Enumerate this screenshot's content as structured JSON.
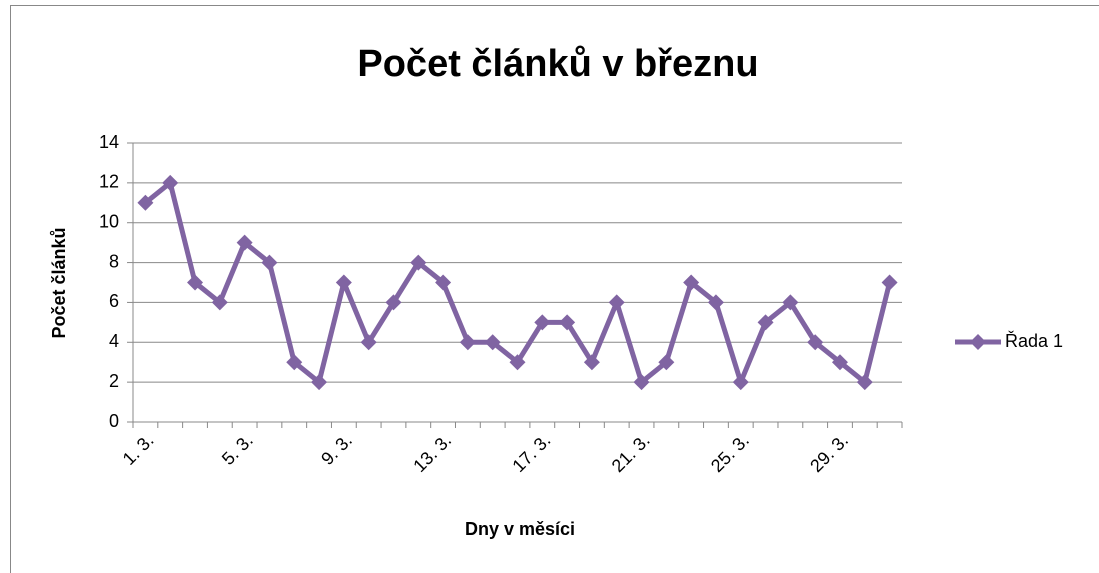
{
  "chart_data": {
    "type": "line",
    "title": "Počet článků v březnu",
    "xlabel": "Dny v měsíci",
    "ylabel": "Počet článků",
    "categories": [
      "1. 3.",
      null,
      null,
      null,
      "5. 3.",
      null,
      null,
      null,
      "9. 3.",
      null,
      null,
      null,
      "13. 3.",
      null,
      null,
      null,
      "17. 3.",
      null,
      null,
      null,
      "21. 3.",
      null,
      null,
      null,
      "25. 3.",
      null,
      null,
      null,
      "29. 3.",
      null,
      null
    ],
    "series": [
      {
        "name": "Řada 1",
        "color": "#8064a2",
        "values": [
          11,
          12,
          7,
          6,
          9,
          8,
          3,
          2,
          7,
          4,
          6,
          8,
          7,
          4,
          4,
          3,
          5,
          5,
          3,
          6,
          2,
          3,
          7,
          6,
          2,
          5,
          6,
          4,
          3,
          2,
          7
        ]
      }
    ],
    "ylim": [
      0,
      14
    ],
    "yticks": [
      0,
      2,
      4,
      6,
      8,
      10,
      12,
      14
    ],
    "grid": true,
    "legend": "right"
  }
}
